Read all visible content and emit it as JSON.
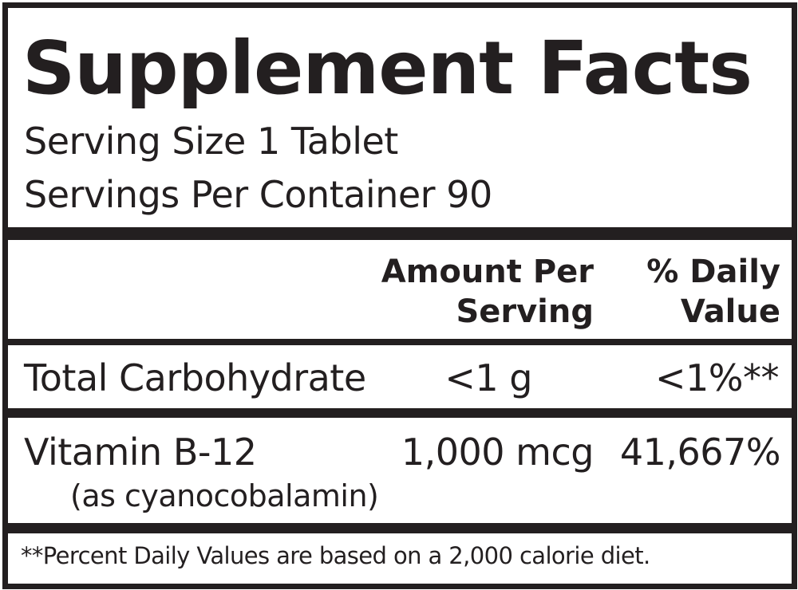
{
  "title": "Supplement Facts",
  "serving_size": "Serving Size 1 Tablet",
  "servings_per_container": "Servings Per Container 90",
  "header": {
    "amount_line1": "Amount Per",
    "amount_line2": "Serving",
    "dv_line1": "% Daily",
    "dv_line2": "Value"
  },
  "rows": [
    {
      "name": "Total Carbohydrate",
      "amount": "<1 g",
      "dv": "<1%**"
    },
    {
      "name": "Vitamin B-12",
      "sub": "(as cyanocobalamin)",
      "amount": "1,000 mcg",
      "dv": "41,667%"
    }
  ],
  "footnote": "**Percent Daily Values are based on a 2,000 calorie diet."
}
